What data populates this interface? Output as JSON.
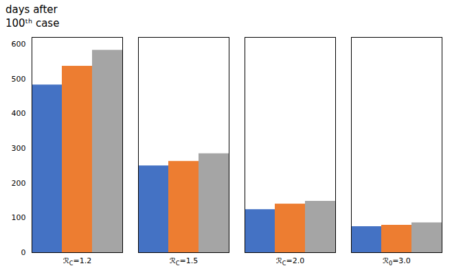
{
  "chart_data": {
    "type": "bar",
    "annotations": [
      "days after",
      "100ᵗʰ case"
    ],
    "categories": [
      "ℛC=1.2",
      "ℛC=1.5",
      "ℛC=2.0",
      "ℛ0=3.0"
    ],
    "series": [
      {
        "color": "#4472C4",
        "values": [
          483,
          250,
          124,
          75
        ]
      },
      {
        "color": "#ED7D31",
        "values": [
          537,
          263,
          140,
          79
        ]
      },
      {
        "color": "#A5A5A5",
        "values": [
          583,
          285,
          148,
          86
        ]
      }
    ],
    "ylim": [
      0,
      620
    ],
    "yticks": [
      0,
      100,
      200,
      300,
      400,
      500,
      600
    ],
    "grid": false
  }
}
